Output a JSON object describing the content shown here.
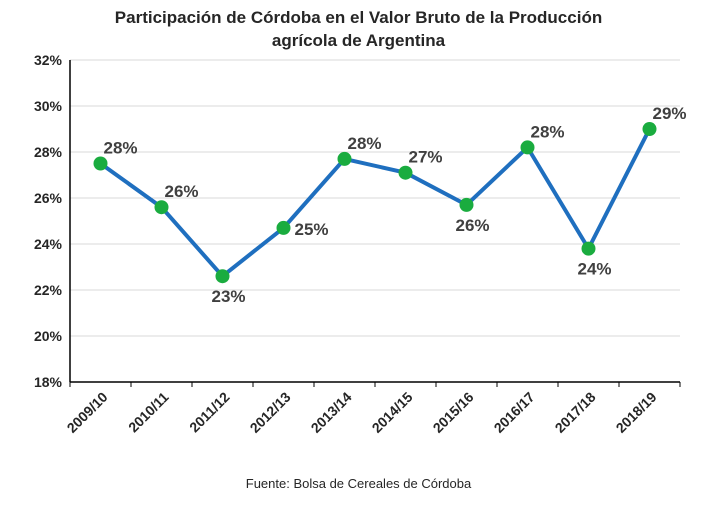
{
  "title_line1": "Participación de Córdoba en el Valor Bruto de la Producción",
  "title_line2": "agrícola de Argentina",
  "source": "Fuente: Bolsa de Cereales de Córdoba",
  "chart_data": {
    "type": "line",
    "title": "Participación de Córdoba en el Valor Bruto de la Producción agrícola de Argentina",
    "categories": [
      "2009/10",
      "2010/11",
      "2011/12",
      "2012/13",
      "2013/14",
      "2014/15",
      "2015/16",
      "2016/17",
      "2017/18",
      "2018/19"
    ],
    "values": [
      27.5,
      25.6,
      22.6,
      24.7,
      27.7,
      27.1,
      25.7,
      28.2,
      23.8,
      29.0
    ],
    "data_labels": [
      "28%",
      "26%",
      "23%",
      "25%",
      "28%",
      "27%",
      "26%",
      "28%",
      "24%",
      "29%"
    ],
    "label_position": [
      "above",
      "above",
      "below",
      "right",
      "above",
      "above",
      "below",
      "above",
      "below",
      "above"
    ],
    "ylim": [
      18,
      32
    ],
    "yticks": [
      18,
      20,
      22,
      24,
      26,
      28,
      30,
      32
    ],
    "ytick_labels": [
      "18%",
      "20%",
      "22%",
      "24%",
      "26%",
      "28%",
      "30%",
      "32%"
    ],
    "grid": true,
    "line_color": "#1f6fbf",
    "marker_color": "#1aac3f"
  }
}
